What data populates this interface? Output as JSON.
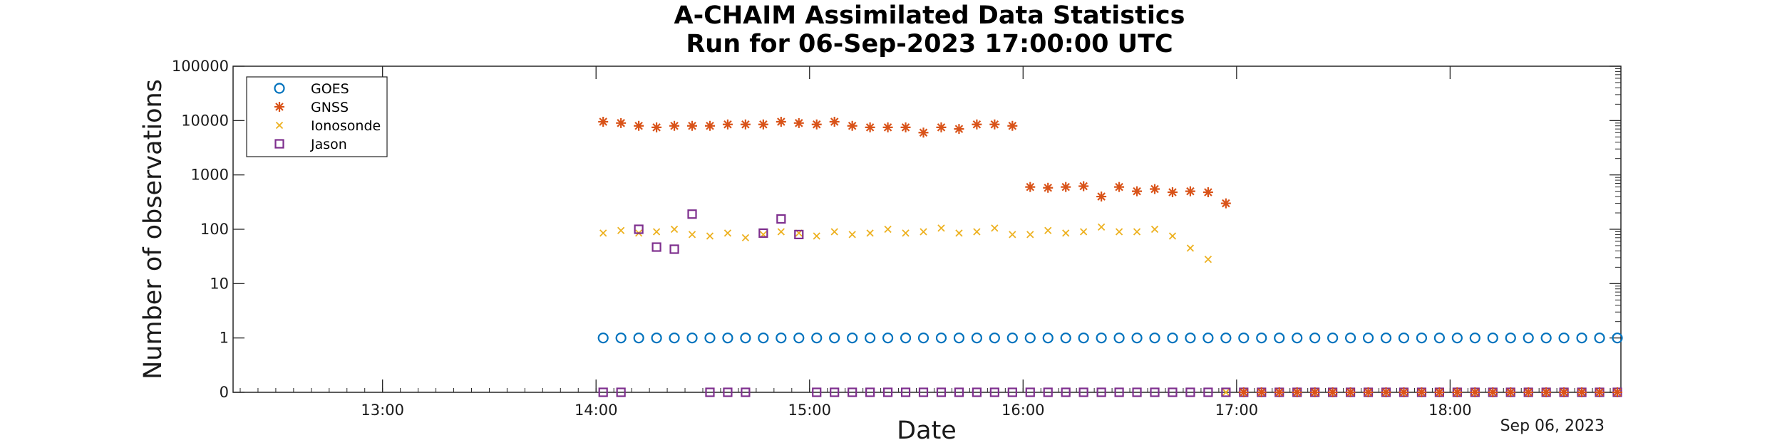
{
  "chart_data": {
    "type": "scatter",
    "title": [
      "A-CHAIM Assimilated Data Statistics",
      "Run for 06-Sep-2023 17:00:00 UTC"
    ],
    "xlabel": "Date",
    "ylabel": "Number of observations",
    "date_label": "Sep 06, 2023",
    "x_range": [
      "12:18",
      "18:48"
    ],
    "x_ticks": [
      "13:00",
      "14:00",
      "15:00",
      "16:00",
      "17:00",
      "18:00"
    ],
    "y_scale": "log (0 drawn at bottom)",
    "y_ticks": [
      "0",
      "1",
      "10",
      "100",
      "1000",
      "10000",
      "100000"
    ],
    "grid": false,
    "legend_position": "top-left",
    "colors": {
      "GOES": "#0072BD",
      "GNSS": "#D95319",
      "Ionosonde": "#EDB120",
      "Jason": "#7E2F8E"
    },
    "series": [
      {
        "name": "GOES",
        "marker": "circle",
        "x": [
          "14:02",
          "14:07",
          "14:12",
          "14:17",
          "14:22",
          "14:27",
          "14:32",
          "14:37",
          "14:42",
          "14:47",
          "14:52",
          "14:57",
          "15:02",
          "15:07",
          "15:12",
          "15:17",
          "15:22",
          "15:27",
          "15:32",
          "15:37",
          "15:42",
          "15:47",
          "15:52",
          "15:57",
          "16:02",
          "16:07",
          "16:12",
          "16:17",
          "16:22",
          "16:27",
          "16:32",
          "16:37",
          "16:42",
          "16:47",
          "16:52",
          "16:57",
          "17:02",
          "17:07",
          "17:12",
          "17:17",
          "17:22",
          "17:27",
          "17:32",
          "17:37",
          "17:42",
          "17:47",
          "17:52",
          "17:57",
          "18:02",
          "18:07",
          "18:12",
          "18:17",
          "18:22",
          "18:27",
          "18:32",
          "18:37",
          "18:42",
          "18:47"
        ],
        "y": [
          1,
          1,
          1,
          1,
          1,
          1,
          1,
          1,
          1,
          1,
          1,
          1,
          1,
          1,
          1,
          1,
          1,
          1,
          1,
          1,
          1,
          1,
          1,
          1,
          1,
          1,
          1,
          1,
          1,
          1,
          1,
          1,
          1,
          1,
          1,
          1,
          1,
          1,
          1,
          1,
          1,
          1,
          1,
          1,
          1,
          1,
          1,
          1,
          1,
          1,
          1,
          1,
          1,
          1,
          1,
          1,
          1,
          1
        ]
      },
      {
        "name": "GNSS",
        "marker": "asterisk",
        "x": [
          "14:02",
          "14:07",
          "14:12",
          "14:17",
          "14:22",
          "14:27",
          "14:32",
          "14:37",
          "14:42",
          "14:47",
          "14:52",
          "14:57",
          "15:02",
          "15:07",
          "15:12",
          "15:17",
          "15:22",
          "15:27",
          "15:32",
          "15:37",
          "15:42",
          "15:47",
          "15:52",
          "15:57",
          "16:02",
          "16:07",
          "16:12",
          "16:17",
          "16:22",
          "16:27",
          "16:32",
          "16:37",
          "16:42",
          "16:47",
          "16:52",
          "16:57",
          "17:02",
          "17:07",
          "17:12",
          "17:17",
          "17:22",
          "17:27",
          "17:32",
          "17:37",
          "17:42",
          "17:47",
          "17:52",
          "17:57",
          "18:02",
          "18:07",
          "18:12",
          "18:17",
          "18:22",
          "18:27",
          "18:32",
          "18:37",
          "18:42",
          "18:47"
        ],
        "y": [
          9500,
          9000,
          8000,
          7500,
          8000,
          8000,
          8000,
          8500,
          8500,
          8500,
          9500,
          9000,
          8500,
          9500,
          8000,
          7500,
          7500,
          7500,
          6000,
          7500,
          7000,
          8500,
          8500,
          8000,
          600,
          580,
          600,
          620,
          400,
          600,
          500,
          550,
          480,
          500,
          480,
          300,
          0,
          0,
          0,
          0,
          0,
          0,
          0,
          0,
          0,
          0,
          0,
          0,
          0,
          0,
          0,
          0,
          0,
          0,
          0,
          0,
          0,
          0
        ]
      },
      {
        "name": "Ionosonde",
        "marker": "x",
        "x": [
          "14:02",
          "14:07",
          "14:12",
          "14:17",
          "14:22",
          "14:27",
          "14:32",
          "14:37",
          "14:42",
          "14:47",
          "14:52",
          "14:57",
          "15:02",
          "15:07",
          "15:12",
          "15:17",
          "15:22",
          "15:27",
          "15:32",
          "15:37",
          "15:42",
          "15:47",
          "15:52",
          "15:57",
          "16:02",
          "16:07",
          "16:12",
          "16:17",
          "16:22",
          "16:27",
          "16:32",
          "16:37",
          "16:42",
          "16:47",
          "16:52",
          "16:57",
          "17:02",
          "17:07",
          "17:12",
          "17:17",
          "17:22",
          "17:27",
          "17:32",
          "17:37",
          "17:42",
          "17:47",
          "17:52",
          "17:57",
          "18:02",
          "18:07",
          "18:12",
          "18:17",
          "18:22",
          "18:27",
          "18:32",
          "18:37",
          "18:42",
          "18:47"
        ],
        "y": [
          85,
          95,
          85,
          90,
          100,
          80,
          75,
          85,
          70,
          80,
          90,
          85,
          75,
          90,
          80,
          85,
          100,
          85,
          90,
          105,
          85,
          90,
          105,
          80,
          80,
          95,
          85,
          90,
          110,
          90,
          90,
          100,
          75,
          45,
          28,
          0,
          0,
          0,
          0,
          0,
          0,
          0,
          0,
          0,
          0,
          0,
          0,
          0,
          0,
          0,
          0,
          0,
          0,
          0,
          0,
          0,
          0,
          0
        ]
      },
      {
        "name": "Jason",
        "marker": "square",
        "x": [
          "14:02",
          "14:07",
          "14:12",
          "14:17",
          "14:22",
          "14:27",
          "14:32",
          "14:37",
          "14:42",
          "14:47",
          "14:52",
          "14:57",
          "15:02",
          "15:07",
          "15:12",
          "15:17",
          "15:22",
          "15:27",
          "15:32",
          "15:37",
          "15:42",
          "15:47",
          "15:52",
          "15:57",
          "16:02",
          "16:07",
          "16:12",
          "16:17",
          "16:22",
          "16:27",
          "16:32",
          "16:37",
          "16:42",
          "16:47",
          "16:52",
          "16:57",
          "17:02",
          "17:07",
          "17:12",
          "17:17",
          "17:22",
          "17:27",
          "17:32",
          "17:37",
          "17:42",
          "17:47",
          "17:52",
          "17:57",
          "18:02",
          "18:07",
          "18:12",
          "18:17",
          "18:22",
          "18:27",
          "18:32",
          "18:37",
          "18:42",
          "18:47"
        ],
        "y": [
          0,
          0,
          100,
          47,
          43,
          190,
          0,
          0,
          0,
          85,
          155,
          80,
          0,
          0,
          0,
          0,
          0,
          0,
          0,
          0,
          0,
          0,
          0,
          0,
          0,
          0,
          0,
          0,
          0,
          0,
          0,
          0,
          0,
          0,
          0,
          0,
          0,
          0,
          0,
          0,
          0,
          0,
          0,
          0,
          0,
          0,
          0,
          0,
          0,
          0,
          0,
          0,
          0,
          0,
          0,
          0,
          0,
          0
        ]
      }
    ]
  }
}
